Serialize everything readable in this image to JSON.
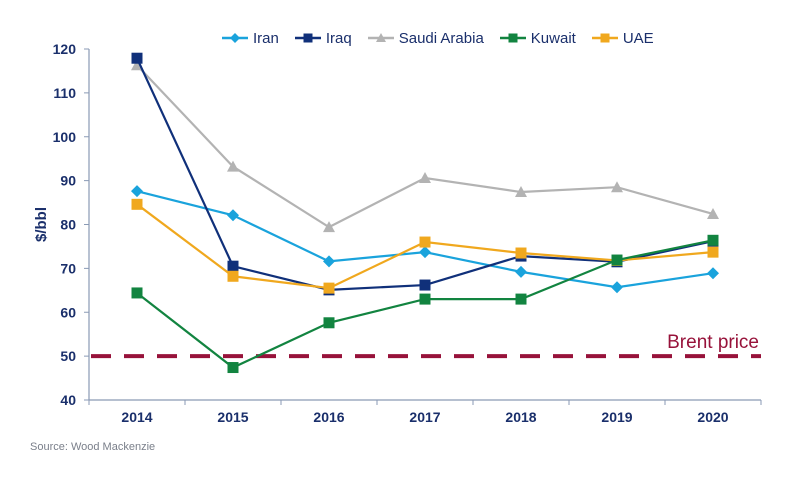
{
  "chart_data": {
    "type": "line",
    "title": "",
    "xlabel": "",
    "ylabel": "$/bbl",
    "ylim": [
      40,
      120
    ],
    "yticks": [
      40,
      50,
      60,
      70,
      80,
      90,
      100,
      110,
      120
    ],
    "categories": [
      "2014",
      "2015",
      "2016",
      "2017",
      "2018",
      "2019",
      "2020"
    ],
    "grid": false,
    "legend_position": "top-center",
    "series": [
      {
        "name": "Iran",
        "color": "#1aa3dc",
        "marker": "diamond",
        "values": [
          87.6,
          82.1,
          71.6,
          73.7,
          69.2,
          65.7,
          68.9
        ]
      },
      {
        "name": "Iraq",
        "color": "#10307a",
        "marker": "square",
        "values": [
          117.9,
          70.5,
          65.1,
          66.2,
          72.8,
          71.5,
          76.2
        ]
      },
      {
        "name": "Saudi Arabia",
        "color": "#b3b3b3",
        "marker": "triangle",
        "values": [
          116.3,
          93.2,
          79.4,
          90.6,
          87.4,
          88.5,
          82.4
        ]
      },
      {
        "name": "Kuwait",
        "color": "#128440",
        "marker": "square",
        "values": [
          64.4,
          47.4,
          57.6,
          63.0,
          63.0,
          71.9,
          76.4
        ]
      },
      {
        "name": "UAE",
        "color": "#f0a81e",
        "marker": "square",
        "values": [
          84.6,
          68.2,
          65.5,
          76.0,
          73.5,
          71.8,
          73.7
        ]
      }
    ],
    "reference_line": {
      "label": "Brent price",
      "value": 50,
      "color": "#97123a",
      "style": "dashed"
    },
    "source": "Source: Wood Mackenzie"
  }
}
